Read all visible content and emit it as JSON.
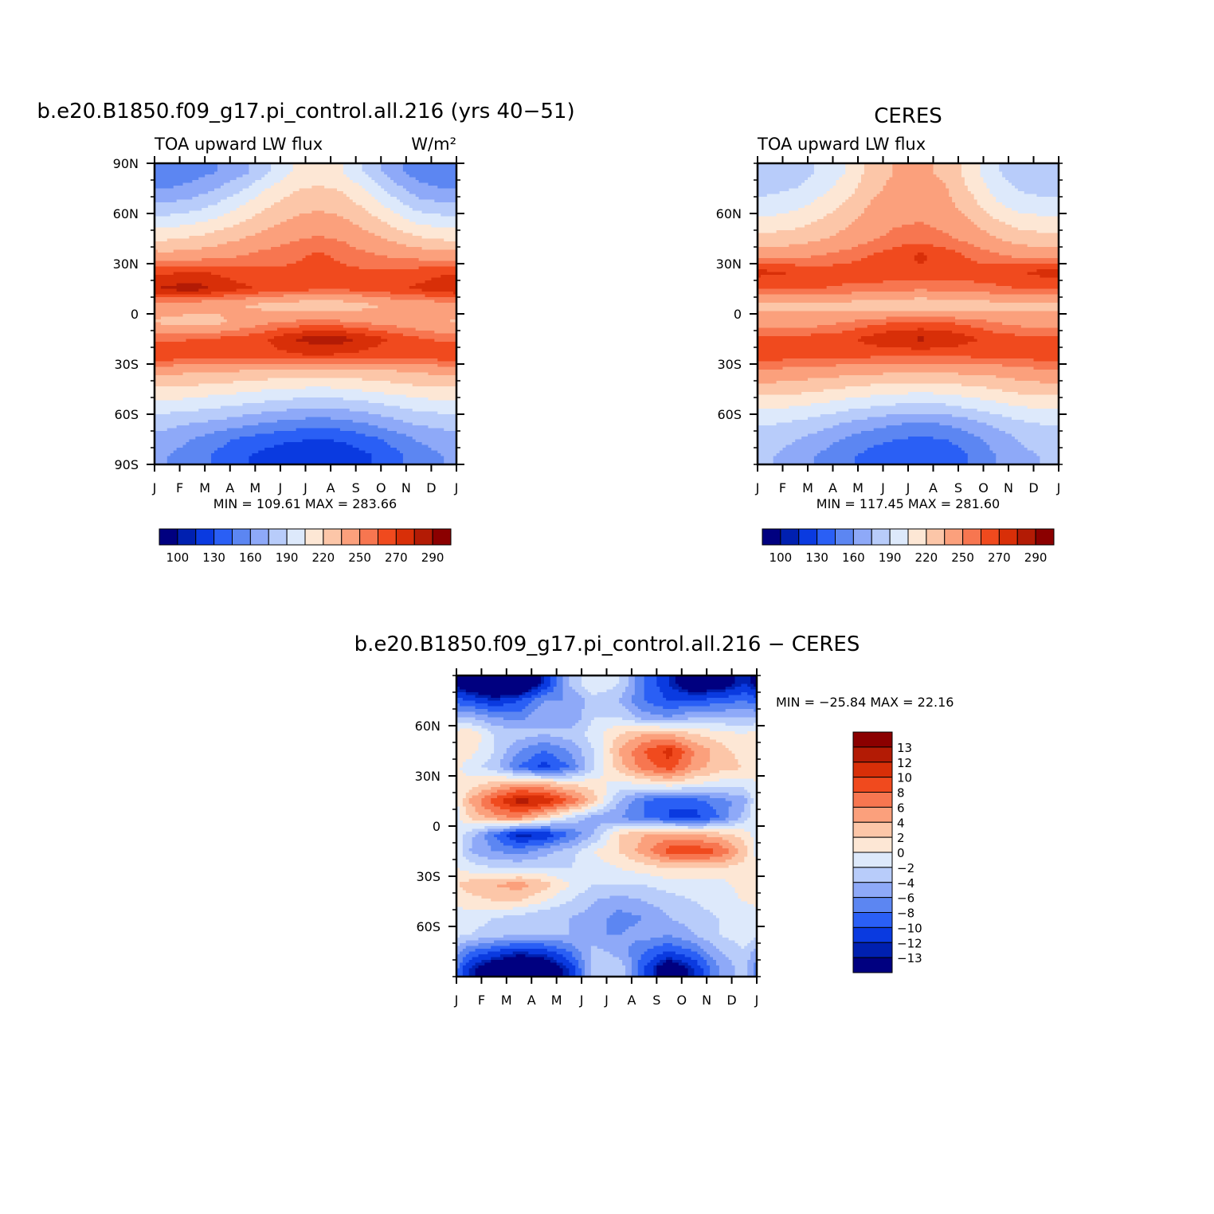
{
  "chart_data": [
    {
      "type": "heatmap",
      "id": "model",
      "title": "b.e20.B1850.f09_g17.pi_control.all.216 (yrs 40−51)",
      "left_subtitle": "TOA upward LW flux",
      "right_subtitle": "W/m²",
      "xlabel": "",
      "ylabel": "",
      "x_tick_labels": [
        "J",
        "F",
        "M",
        "A",
        "M",
        "J",
        "J",
        "A",
        "S",
        "O",
        "N",
        "D",
        "J"
      ],
      "y_ticks": [
        {
          "lat": 90,
          "label": "90N"
        },
        {
          "lat": 60,
          "label": "60N"
        },
        {
          "lat": 30,
          "label": "30N"
        },
        {
          "lat": 0,
          "label": "0"
        },
        {
          "lat": -30,
          "label": "30S"
        },
        {
          "lat": -60,
          "label": "60S"
        },
        {
          "lat": -90,
          "label": "90S"
        }
      ],
      "xlim": [
        0,
        12
      ],
      "ylim": [
        -90,
        90
      ],
      "stats_text": "MIN =  109.61  MAX =  283.66",
      "min": 109.61,
      "max": 283.66,
      "colorbar": {
        "orientation": "horizontal",
        "labels": [
          "100",
          "130",
          "160",
          "190",
          "220",
          "250",
          "270",
          "290"
        ],
        "colors": [
          "#000080",
          "#0020b0",
          "#0a3ae0",
          "#2a5ff5",
          "#5c86f2",
          "#8ea9f8",
          "#b8ccfa",
          "#dde9fb",
          "#fde7d5",
          "#fcc6a8",
          "#fba07c",
          "#f77650",
          "#f04a1e",
          "#d82f08",
          "#b31b05",
          "#8b0000"
        ]
      },
      "field": {
        "lat_centers": [
          85,
          75,
          65,
          55,
          45,
          35,
          25,
          15,
          5,
          -5,
          -15,
          -25,
          -35,
          -45,
          -55,
          -65,
          -75,
          -85
        ],
        "cols": 12,
        "values": [
          [
            148,
            152,
            160,
            170,
            188,
            205,
            212,
            205,
            185,
            165,
            152,
            148
          ],
          [
            160,
            165,
            175,
            188,
            205,
            218,
            222,
            218,
            202,
            182,
            165,
            160
          ],
          [
            178,
            182,
            192,
            205,
            218,
            228,
            232,
            228,
            215,
            198,
            182,
            178
          ],
          [
            198,
            202,
            210,
            220,
            230,
            238,
            242,
            238,
            228,
            215,
            202,
            198
          ],
          [
            218,
            222,
            228,
            235,
            242,
            248,
            252,
            248,
            240,
            232,
            222,
            218
          ],
          [
            240,
            242,
            245,
            250,
            255,
            258,
            262,
            258,
            252,
            248,
            245,
            242
          ],
          [
            268,
            272,
            268,
            265,
            262,
            262,
            262,
            262,
            262,
            262,
            265,
            268
          ],
          [
            282,
            286,
            278,
            272,
            268,
            265,
            262,
            262,
            265,
            268,
            272,
            278
          ],
          [
            242,
            240,
            238,
            235,
            230,
            226,
            222,
            226,
            232,
            238,
            240,
            242
          ],
          [
            232,
            230,
            232,
            240,
            248,
            252,
            255,
            252,
            248,
            245,
            240,
            235
          ],
          [
            258,
            260,
            262,
            265,
            270,
            280,
            286,
            284,
            276,
            268,
            262,
            258
          ],
          [
            268,
            266,
            265,
            265,
            266,
            268,
            270,
            268,
            266,
            265,
            266,
            268
          ],
          [
            238,
            236,
            234,
            232,
            230,
            228,
            228,
            228,
            230,
            232,
            236,
            238
          ],
          [
            218,
            216,
            212,
            210,
            206,
            204,
            202,
            204,
            208,
            212,
            216,
            218
          ],
          [
            198,
            196,
            192,
            188,
            184,
            180,
            178,
            180,
            184,
            190,
            196,
            198
          ],
          [
            180,
            176,
            172,
            166,
            160,
            155,
            152,
            155,
            162,
            170,
            178,
            180
          ],
          [
            168,
            160,
            150,
            142,
            136,
            132,
            130,
            132,
            140,
            150,
            162,
            168
          ],
          [
            160,
            152,
            142,
            132,
            124,
            118,
            115,
            118,
            128,
            140,
            152,
            160
          ]
        ]
      }
    },
    {
      "type": "heatmap",
      "id": "obs",
      "title": "CERES",
      "left_subtitle": "TOA upward LW flux",
      "xlabel": "",
      "ylabel": "",
      "x_tick_labels": [
        "J",
        "F",
        "M",
        "A",
        "M",
        "J",
        "J",
        "A",
        "S",
        "O",
        "N",
        "D",
        "J"
      ],
      "y_ticks": [
        {
          "lat": 60,
          "label": "60N"
        },
        {
          "lat": 30,
          "label": "30N"
        },
        {
          "lat": 0,
          "label": "0"
        },
        {
          "lat": -30,
          "label": "30S"
        },
        {
          "lat": -60,
          "label": "60S"
        }
      ],
      "xlim": [
        0,
        12
      ],
      "ylim": [
        -90,
        90
      ],
      "stats_text": "MIN =  117.45  MAX =  281.60",
      "min": 117.45,
      "max": 281.6,
      "colorbar": {
        "orientation": "horizontal",
        "labels": [
          "100",
          "130",
          "160",
          "190",
          "220",
          "250",
          "270",
          "290"
        ],
        "colors": [
          "#000080",
          "#0020b0",
          "#0a3ae0",
          "#2a5ff5",
          "#5c86f2",
          "#8ea9f8",
          "#b8ccfa",
          "#dde9fb",
          "#fde7d5",
          "#fcc6a8",
          "#fba07c",
          "#f77650",
          "#f04a1e",
          "#d82f08",
          "#b31b05",
          "#8b0000"
        ]
      },
      "field": {
        "lat_centers": [
          85,
          75,
          65,
          55,
          45,
          35,
          25,
          15,
          5,
          -5,
          -15,
          -25,
          -35,
          -45,
          -55,
          -65,
          -75,
          -85
        ],
        "cols": 12,
        "values": [
          [
            178,
            182,
            192,
            205,
            225,
            236,
            238,
            232,
            212,
            192,
            180,
            176
          ],
          [
            186,
            190,
            200,
            212,
            230,
            240,
            242,
            236,
            218,
            198,
            188,
            184
          ],
          [
            196,
            200,
            210,
            222,
            236,
            244,
            246,
            240,
            226,
            208,
            198,
            196
          ],
          [
            210,
            214,
            222,
            232,
            242,
            248,
            250,
            246,
            236,
            222,
            212,
            210
          ],
          [
            226,
            228,
            234,
            240,
            248,
            254,
            256,
            252,
            246,
            236,
            228,
            226
          ],
          [
            244,
            246,
            250,
            255,
            260,
            266,
            272,
            266,
            258,
            252,
            246,
            244
          ],
          [
            272,
            270,
            266,
            265,
            266,
            268,
            268,
            266,
            265,
            266,
            270,
            274
          ],
          [
            262,
            262,
            260,
            258,
            256,
            254,
            252,
            254,
            256,
            258,
            260,
            262
          ],
          [
            232,
            232,
            230,
            228,
            226,
            224,
            222,
            224,
            226,
            228,
            230,
            232
          ],
          [
            242,
            242,
            245,
            250,
            256,
            260,
            262,
            260,
            256,
            250,
            245,
            242
          ],
          [
            262,
            264,
            266,
            268,
            274,
            280,
            282,
            280,
            272,
            266,
            264,
            262
          ],
          [
            266,
            264,
            264,
            262,
            262,
            262,
            262,
            262,
            262,
            262,
            264,
            266
          ],
          [
            246,
            244,
            242,
            240,
            238,
            236,
            236,
            236,
            238,
            240,
            244,
            246
          ],
          [
            228,
            226,
            222,
            218,
            214,
            212,
            210,
            212,
            216,
            220,
            226,
            228
          ],
          [
            208,
            206,
            202,
            196,
            192,
            188,
            186,
            188,
            194,
            200,
            206,
            208
          ],
          [
            192,
            188,
            182,
            175,
            168,
            162,
            160,
            162,
            170,
            180,
            188,
            192
          ],
          [
            182,
            176,
            168,
            158,
            150,
            145,
            142,
            145,
            154,
            166,
            176,
            182
          ],
          [
            176,
            168,
            158,
            148,
            140,
            134,
            132,
            134,
            146,
            160,
            172,
            176
          ]
        ]
      }
    },
    {
      "type": "heatmap",
      "id": "diff",
      "title": "b.e20.B1850.f09_g17.pi_control.all.216 − CERES",
      "xlabel": "",
      "ylabel": "",
      "x_tick_labels": [
        "J",
        "F",
        "M",
        "A",
        "M",
        "J",
        "J",
        "A",
        "S",
        "O",
        "N",
        "D",
        "J"
      ],
      "y_ticks": [
        {
          "lat": 60,
          "label": "60N"
        },
        {
          "lat": 30,
          "label": "30N"
        },
        {
          "lat": 0,
          "label": "0"
        },
        {
          "lat": -30,
          "label": "30S"
        },
        {
          "lat": -60,
          "label": "60S"
        }
      ],
      "xlim": [
        0,
        12
      ],
      "ylim": [
        -90,
        90
      ],
      "stats_text": "MIN = −25.84  MAX =   22.16",
      "min": -25.84,
      "max": 22.16,
      "colorbar": {
        "orientation": "vertical",
        "labels": [
          "13",
          "12",
          "10",
          "8",
          "6",
          "4",
          "2",
          "0",
          "−2",
          "−4",
          "−6",
          "−8",
          "−10",
          "−12",
          "−13"
        ],
        "colors": [
          "#8b0000",
          "#b31b05",
          "#d82f08",
          "#f04a1e",
          "#f77650",
          "#fba07c",
          "#fcc6a8",
          "#fde7d5",
          "#dde9fb",
          "#b8ccfa",
          "#8ea9f8",
          "#5c86f2",
          "#2a5ff5",
          "#0a3ae0",
          "#0020b0",
          "#000080"
        ]
      },
      "field": {
        "lat_centers": [
          85,
          75,
          65,
          55,
          45,
          35,
          25,
          15,
          5,
          -5,
          -15,
          -25,
          -35,
          -45,
          -55,
          -65,
          -75,
          -85
        ],
        "cols": 12,
        "values": [
          [
            -16,
            -17,
            -18,
            -12,
            -4,
            0,
            -2,
            -8,
            -12,
            -16,
            -15,
            -12
          ],
          [
            -10,
            -12,
            -10,
            -6,
            -6,
            -3,
            -4,
            -8,
            -10,
            -10,
            -9,
            -8
          ],
          [
            -4,
            -6,
            -7,
            -4,
            -6,
            -2,
            -2,
            -5,
            -6,
            -4,
            -4,
            -4
          ],
          [
            2,
            -2,
            -3,
            -4,
            -3,
            -1,
            2,
            4,
            4,
            2,
            1,
            0
          ],
          [
            1,
            -2,
            -6,
            -8,
            -6,
            -2,
            4,
            8,
            11,
            6,
            3,
            1
          ],
          [
            -1,
            -3,
            -8,
            -11,
            -8,
            -2,
            3,
            7,
            9,
            5,
            3,
            2
          ],
          [
            1,
            3,
            5,
            4,
            2,
            1,
            -1,
            0,
            1,
            0,
            -1,
            -1
          ],
          [
            4,
            9,
            13,
            12,
            8,
            3,
            -4,
            -8,
            -10,
            -9,
            -7,
            -5
          ],
          [
            2,
            5,
            6,
            2,
            -2,
            -5,
            -6,
            -8,
            -10,
            -11,
            -8,
            -3
          ],
          [
            -3,
            -8,
            -13,
            -12,
            -8,
            -4,
            2,
            4,
            5,
            4,
            3,
            1
          ],
          [
            -4,
            -6,
            -7,
            -5,
            -3,
            0,
            2,
            5,
            9,
            10,
            8,
            3
          ],
          [
            -1,
            -2,
            -2,
            -2,
            -2,
            -1,
            0,
            1,
            2,
            2,
            2,
            1
          ],
          [
            3,
            4,
            5,
            3,
            0,
            -2,
            -2,
            -2,
            -1,
            -1,
            -1,
            1
          ],
          [
            1,
            2,
            2,
            0,
            -2,
            -4,
            -5,
            -4,
            -3,
            -2,
            -1,
            0
          ],
          [
            -1,
            -2,
            -3,
            -4,
            -4,
            -5,
            -7,
            -6,
            -4,
            -3,
            -2,
            -1
          ],
          [
            -2,
            -3,
            -4,
            -4,
            -4,
            -6,
            -6,
            -5,
            -6,
            -4,
            -2,
            -1
          ],
          [
            -8,
            -10,
            -12,
            -11,
            -8,
            -3,
            -5,
            -8,
            -10,
            -8,
            -4,
            -2
          ],
          [
            -12,
            -16,
            -17,
            -16,
            -12,
            -3,
            -2,
            -10,
            -16,
            -12,
            -6,
            -3
          ]
        ]
      }
    }
  ]
}
